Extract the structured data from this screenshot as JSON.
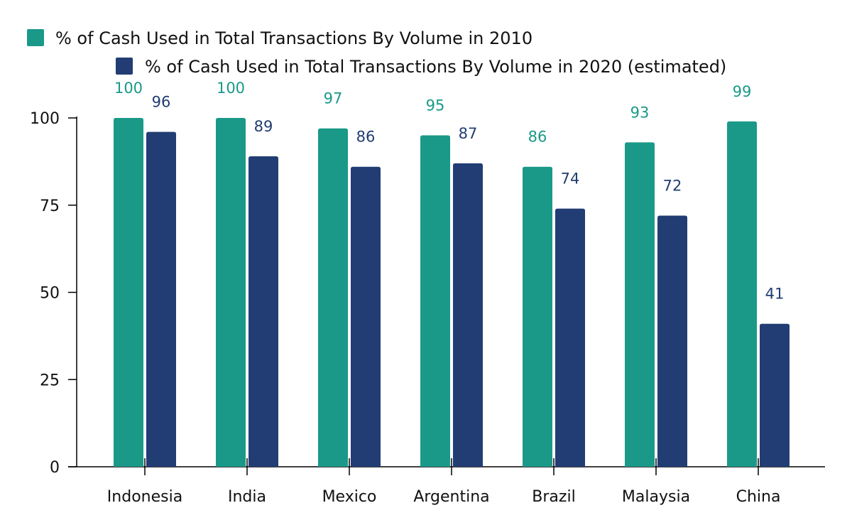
{
  "chart_data": {
    "type": "bar",
    "title": "",
    "xlabel": "",
    "ylabel": "",
    "categories": [
      "Indonesia",
      "India",
      "Mexico",
      "Argentina",
      "Brazil",
      "Malaysia",
      "China"
    ],
    "series": [
      {
        "name": "% of Cash Used in Total Transactions By Volume in 2010",
        "values": [
          100,
          100,
          97,
          95,
          86,
          93,
          99
        ],
        "color": "#1a9988"
      },
      {
        "name": "% of Cash Used in Total Transactions By Volume in 2020 (estimated)",
        "values": [
          96,
          89,
          86,
          87,
          74,
          72,
          41
        ],
        "color": "#213d73"
      }
    ],
    "ylim": [
      0,
      100
    ],
    "yticks": [
      0,
      25,
      50,
      75,
      100
    ],
    "ytick_labels": [
      "0",
      "25",
      "50",
      "75",
      "100"
    ],
    "grid": false,
    "legend_position": "top-left"
  }
}
